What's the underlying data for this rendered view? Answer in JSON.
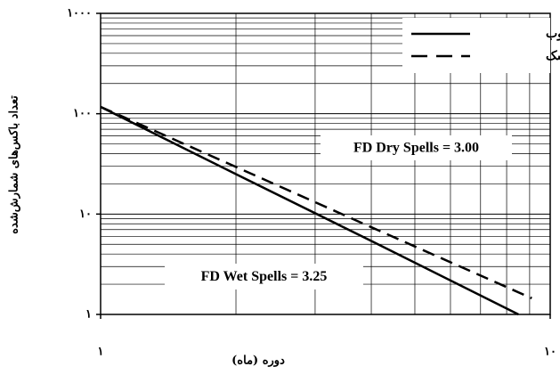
{
  "chart_data": {
    "type": "line",
    "x_label": "دوره (ماه)",
    "y_label": "تعداد باکس‌های شمارش‌شده",
    "xlog": true,
    "ylog": true,
    "grid": true,
    "minor_grid": true,
    "legend": "upper right",
    "xlim": [
      1,
      10
    ],
    "ylim": [
      1,
      1000
    ],
    "xticks": [
      {
        "value": 1,
        "label": "۱"
      },
      {
        "value": 10,
        "label": "۱۰"
      }
    ],
    "yticks": [
      {
        "value": 1,
        "label": "۱"
      },
      {
        "value": 10,
        "label": "۱۰"
      },
      {
        "value": 100,
        "label": "۱۰۰"
      },
      {
        "value": 1000,
        "label": "۱۰۰۰"
      }
    ],
    "series": [
      {
        "name": "مرطوب",
        "color": "#000000",
        "line_style": "solid",
        "x": [
          1,
          2,
          4,
          8.5
        ],
        "values": [
          117,
          25,
          5.4,
          1.0
        ]
      },
      {
        "name": "خشک",
        "color": "#000000",
        "line_style": "dashed",
        "x": [
          1,
          2,
          4,
          9.1
        ],
        "values": [
          117,
          29.5,
          7.4,
          1.45
        ]
      }
    ],
    "annotations": [
      "FD Dry Spells = 3.00",
      "FD Wet Spells = 3.25"
    ]
  }
}
